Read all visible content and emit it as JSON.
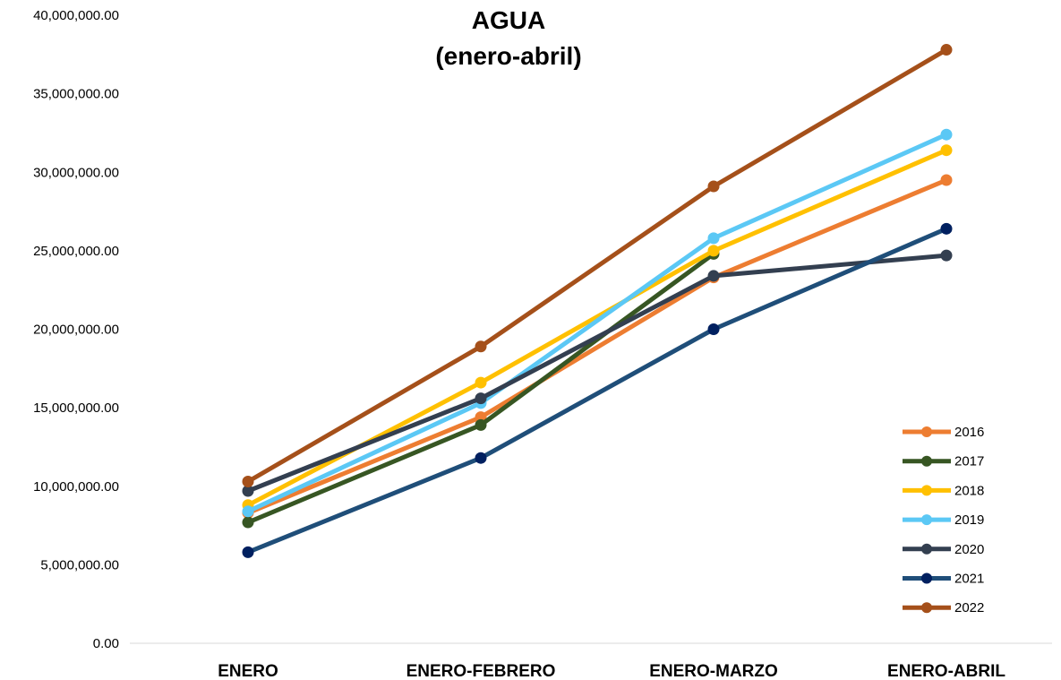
{
  "chart_data": {
    "type": "line",
    "title_lines": [
      "AGUA",
      "(enero-abril)"
    ],
    "categories": [
      "ENERO",
      "ENERO-FEBRERO",
      "ENERO-MARZO",
      "ENERO-ABRIL"
    ],
    "ylim": [
      0,
      40000000
    ],
    "yticks": [
      0,
      5000000,
      10000000,
      15000000,
      20000000,
      25000000,
      30000000,
      35000000,
      40000000
    ],
    "ytick_labels": [
      "0.00",
      "5,000,000.00",
      "10,000,000.00",
      "15,000,000.00",
      "20,000,000.00",
      "25,000,000.00",
      "30,000,000.00",
      "35,000,000.00",
      "40,000,000.00"
    ],
    "grid": false,
    "legend_position": "bottom-right",
    "series": [
      {
        "name": "2016",
        "color": "#ED7D31",
        "values": [
          8300000,
          14400000,
          23300000,
          29500000
        ]
      },
      {
        "name": "2017",
        "color": "#375623",
        "values": [
          7700000,
          13900000,
          24800000,
          null
        ]
      },
      {
        "name": "2018",
        "color": "#FFC000",
        "values": [
          8800000,
          16600000,
          25000000,
          31400000
        ]
      },
      {
        "name": "2019",
        "color": "#5BC8F5",
        "values": [
          8400000,
          15300000,
          25800000,
          32400000
        ]
      },
      {
        "name": "2020",
        "color": "#333F50",
        "values": [
          9700000,
          15600000,
          23400000,
          24700000
        ]
      },
      {
        "name": "2021",
        "color": "#1F4E79",
        "marker_color": "#002060",
        "values": [
          5800000,
          11800000,
          20000000,
          26400000
        ]
      },
      {
        "name": "2022",
        "color": "#A5501A",
        "values": [
          10300000,
          18900000,
          29100000,
          37800000
        ]
      }
    ]
  }
}
